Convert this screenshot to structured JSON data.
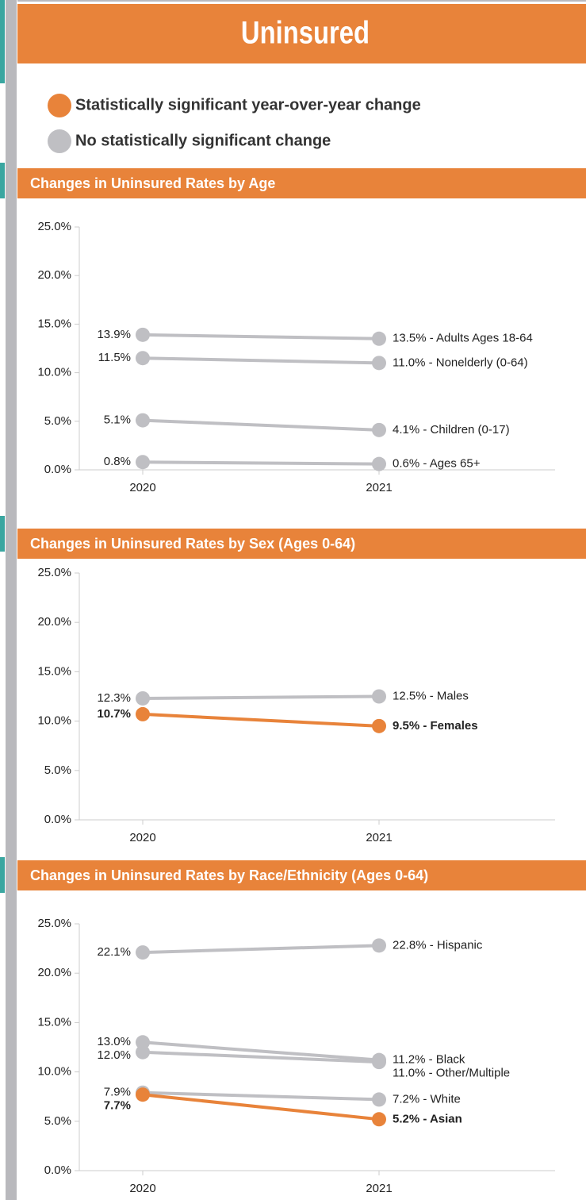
{
  "header": {
    "title": "Uninsured",
    "legend": [
      {
        "label": "Statistically significant year-over-year change",
        "color": "#e8833a"
      },
      {
        "label": "No statistically significant change",
        "color": "#bfbfc3"
      }
    ]
  },
  "chart_data": [
    {
      "type": "line",
      "title": "Changes in Uninsured Rates by Age",
      "categories": [
        "2020",
        "2021"
      ],
      "ylim": [
        0,
        25
      ],
      "yticks": [
        {
          "value": 0,
          "label": "0.0%"
        },
        {
          "value": 5,
          "label": "5.0%"
        },
        {
          "value": 10,
          "label": "10.0%"
        },
        {
          "value": 15,
          "label": "15.0%"
        },
        {
          "value": 20,
          "label": "20.0%"
        },
        {
          "value": 25,
          "label": "25.0%"
        }
      ],
      "series": [
        {
          "color": "#bfbfc3",
          "significant": false,
          "values": [
            13.9,
            13.5
          ],
          "value_labels": [
            "13.9%",
            "13.5% - Adults Ages 18-64"
          ]
        },
        {
          "color": "#bfbfc3",
          "significant": false,
          "values": [
            11.5,
            11.0
          ],
          "value_labels": [
            "11.5%",
            "11.0% - Nonelderly (0-64)"
          ]
        },
        {
          "color": "#bfbfc3",
          "significant": false,
          "values": [
            5.1,
            4.1
          ],
          "value_labels": [
            "5.1%",
            "4.1% - Children (0-17)"
          ]
        },
        {
          "color": "#bfbfc3",
          "significant": false,
          "values": [
            0.8,
            0.6
          ],
          "value_labels": [
            "0.8%",
            "0.6% - Ages 65+"
          ]
        }
      ]
    },
    {
      "type": "line",
      "title": "Changes in Uninsured Rates by Sex (Ages 0-64)",
      "categories": [
        "2020",
        "2021"
      ],
      "ylim": [
        0,
        25
      ],
      "yticks": [
        {
          "value": 0,
          "label": "0.0%"
        },
        {
          "value": 5,
          "label": "5.0%"
        },
        {
          "value": 10,
          "label": "10.0%"
        },
        {
          "value": 15,
          "label": "15.0%"
        },
        {
          "value": 20,
          "label": "20.0%"
        },
        {
          "value": 25,
          "label": "25.0%"
        }
      ],
      "series": [
        {
          "color": "#bfbfc3",
          "significant": false,
          "values": [
            12.3,
            12.5
          ],
          "value_labels": [
            "12.3%",
            "12.5% - Males"
          ]
        },
        {
          "color": "#e8833a",
          "significant": true,
          "values": [
            10.7,
            9.5
          ],
          "value_labels": [
            "10.7%",
            "9.5% - Females"
          ]
        }
      ]
    },
    {
      "type": "line",
      "title": "Changes in Uninsured Rates by Race/Ethnicity (Ages 0-64)",
      "categories": [
        "2020",
        "2021"
      ],
      "ylim": [
        0,
        25
      ],
      "yticks": [
        {
          "value": 0,
          "label": "0.0%"
        },
        {
          "value": 5,
          "label": "5.0%"
        },
        {
          "value": 10,
          "label": "10.0%"
        },
        {
          "value": 15,
          "label": "15.0%"
        },
        {
          "value": 20,
          "label": "20.0%"
        },
        {
          "value": 25,
          "label": "25.0%"
        }
      ],
      "series": [
        {
          "color": "#bfbfc3",
          "significant": false,
          "values": [
            22.1,
            22.8
          ],
          "value_labels": [
            "22.1%",
            "22.8% - Hispanic"
          ]
        },
        {
          "color": "#bfbfc3",
          "significant": false,
          "values": [
            13.0,
            11.2
          ],
          "value_labels": [
            "13.0%",
            "11.2% - Black"
          ]
        },
        {
          "color": "#bfbfc3",
          "significant": false,
          "values": [
            12.0,
            11.0
          ],
          "value_labels": [
            "12.0%",
            "11.0% - Other/Multiple"
          ]
        },
        {
          "color": "#bfbfc3",
          "significant": false,
          "values": [
            7.9,
            7.2
          ],
          "value_labels": [
            "7.9%",
            "7.2% - White"
          ]
        },
        {
          "color": "#e8833a",
          "significant": true,
          "values": [
            7.7,
            5.2
          ],
          "value_labels": [
            "7.7%",
            "5.2% - Asian"
          ]
        }
      ]
    }
  ]
}
